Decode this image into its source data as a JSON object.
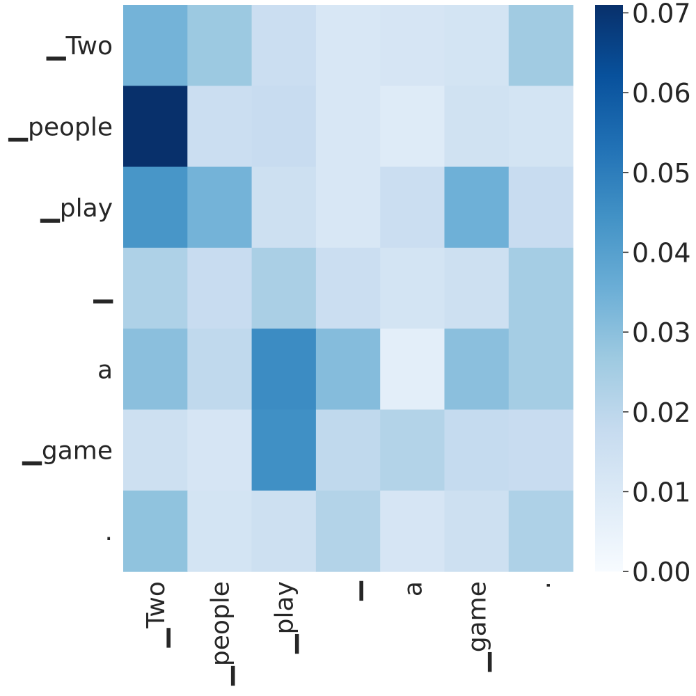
{
  "chart_data": {
    "type": "heatmap",
    "title": "",
    "xlabel": "",
    "ylabel": "",
    "x_labels": [
      "▁Two",
      "▁people",
      "▁play",
      "▁",
      "a",
      "▁game",
      "."
    ],
    "y_labels": [
      "▁Two",
      "▁people",
      "▁play",
      "▁",
      "a",
      "▁game",
      "."
    ],
    "values": [
      [
        0.034,
        0.027,
        0.016,
        0.011,
        0.012,
        0.013,
        0.026
      ],
      [
        0.071,
        0.016,
        0.017,
        0.011,
        0.009,
        0.014,
        0.013
      ],
      [
        0.043,
        0.034,
        0.015,
        0.011,
        0.016,
        0.035,
        0.017
      ],
      [
        0.023,
        0.017,
        0.024,
        0.016,
        0.013,
        0.015,
        0.025
      ],
      [
        0.03,
        0.019,
        0.046,
        0.031,
        0.007,
        0.03,
        0.025
      ],
      [
        0.015,
        0.012,
        0.045,
        0.019,
        0.022,
        0.018,
        0.017
      ],
      [
        0.029,
        0.013,
        0.015,
        0.022,
        0.012,
        0.015,
        0.023
      ]
    ],
    "colorbar": {
      "min": 0.0,
      "max": 0.071,
      "ticks": [
        0.0,
        0.01,
        0.02,
        0.03,
        0.04,
        0.05,
        0.06,
        0.07
      ],
      "tick_labels": [
        "0.00",
        "0.01",
        "0.02",
        "0.03",
        "0.04",
        "0.05",
        "0.06",
        "0.07"
      ],
      "colormap": "Blues",
      "color_stops": [
        "#f7fbff",
        "#deebf7",
        "#c6dbef",
        "#9ecae1",
        "#6baed6",
        "#4292c6",
        "#2171b5",
        "#08519c",
        "#08306b"
      ]
    },
    "grid": false,
    "legend": "colorbar-right"
  }
}
